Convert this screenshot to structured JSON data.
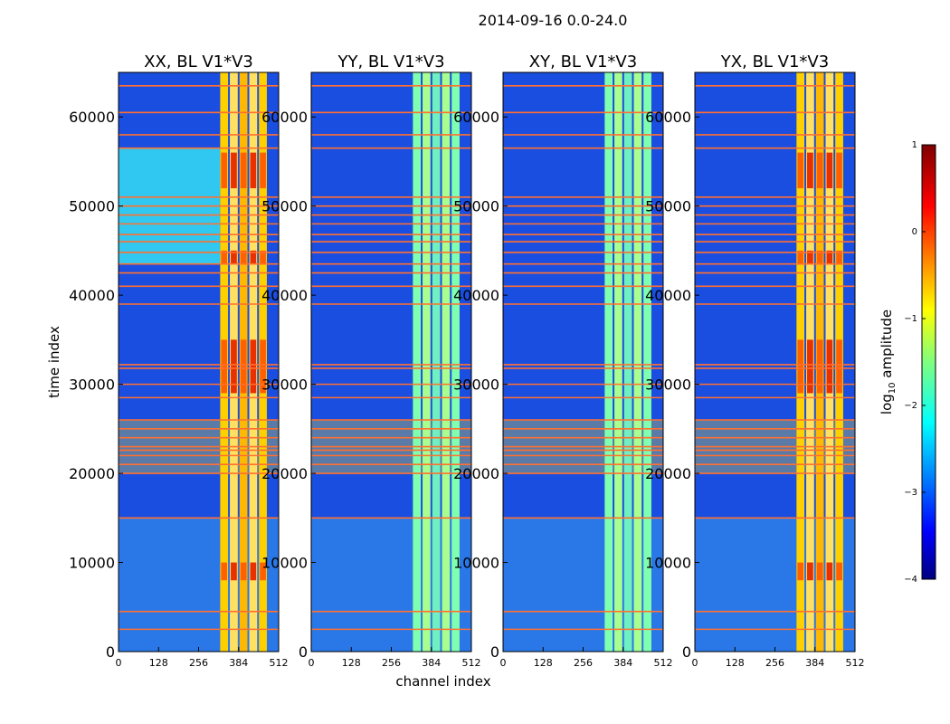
{
  "chart_data": {
    "type": "heatmap",
    "suptitle": "2014-09-16 0.0-24.0",
    "xlabel": "channel index",
    "ylabel": "time index",
    "xlim": [
      0,
      512
    ],
    "ylim": [
      0,
      65000
    ],
    "x_ticks": [
      0,
      128,
      256,
      384,
      512
    ],
    "y_ticks": [
      0,
      10000,
      20000,
      30000,
      40000,
      50000,
      60000
    ],
    "panels": [
      {
        "title": "XX, BL V1*V3",
        "pol": "XX"
      },
      {
        "title": "YY, BL V1*V3",
        "pol": "YY"
      },
      {
        "title": "XY, BL V1*V3",
        "pol": "XY"
      },
      {
        "title": "YX, BL V1*V3",
        "pol": "YX"
      }
    ],
    "colorbar": {
      "label_main": "log",
      "label_sub": "10",
      "label_rest": " amplitude",
      "range": [
        -4,
        1
      ],
      "ticks": [
        "1",
        "0",
        "−1",
        "−2",
        "−3",
        "−4"
      ],
      "colormap": "jet"
    },
    "features": {
      "active_band_channels": [
        325,
        480
      ],
      "flagged_rows": [
        2500,
        4500,
        15000,
        20000,
        21000,
        22000,
        22600,
        23000,
        24000,
        25000,
        26000,
        28500,
        30000,
        31800,
        32200,
        39000,
        41000,
        42500,
        43500,
        44800,
        46000,
        46800,
        48000,
        49000,
        50000,
        51000,
        56500,
        58000,
        60500,
        63500
      ],
      "dense_flag_range": [
        20000,
        26000
      ]
    }
  }
}
